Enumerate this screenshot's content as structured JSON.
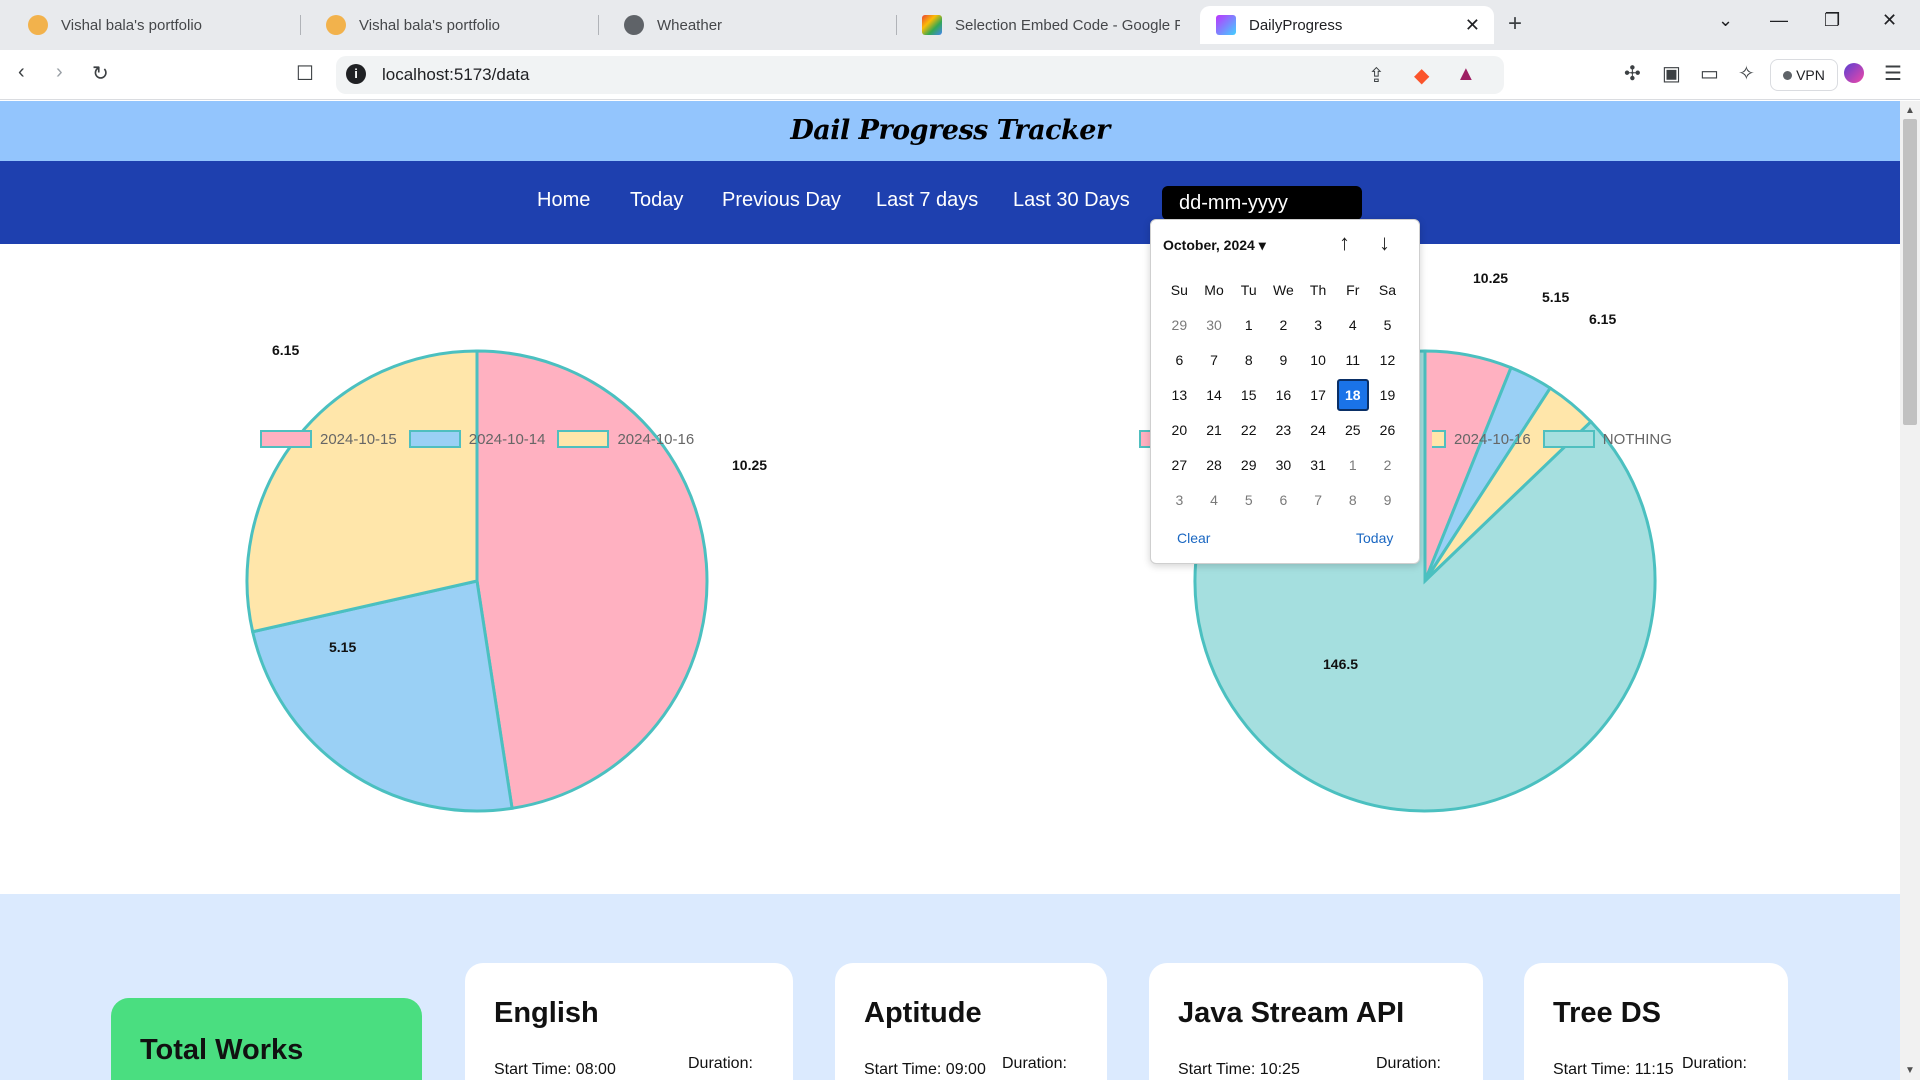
{
  "browser": {
    "tabs": [
      {
        "title": "Vishal bala's portfolio",
        "active": false
      },
      {
        "title": "Vishal bala's portfolio",
        "active": false
      },
      {
        "title": "Wheather",
        "active": false
      },
      {
        "title": "Selection Embed Code - Google For",
        "active": false
      },
      {
        "title": "DailyProgress",
        "active": true
      }
    ],
    "url": "localhost:5173/data",
    "vpn_label": "VPN"
  },
  "site": {
    "title": "Dail Progress Tracker",
    "nav": [
      "Home",
      "Today",
      "Previous Day",
      "Last 7 days",
      "Last 30 Days"
    ],
    "date_placeholder": "dd-mm-yyyy"
  },
  "datepicker": {
    "month_label": "October, 2024",
    "weekdays": [
      "Su",
      "Mo",
      "Tu",
      "We",
      "Th",
      "Fr",
      "Sa"
    ],
    "days": [
      {
        "d": "29",
        "muted": true
      },
      {
        "d": "30",
        "muted": true
      },
      {
        "d": "1"
      },
      {
        "d": "2"
      },
      {
        "d": "3"
      },
      {
        "d": "4"
      },
      {
        "d": "5"
      },
      {
        "d": "6"
      },
      {
        "d": "7"
      },
      {
        "d": "8"
      },
      {
        "d": "9"
      },
      {
        "d": "10"
      },
      {
        "d": "11"
      },
      {
        "d": "12"
      },
      {
        "d": "13"
      },
      {
        "d": "14"
      },
      {
        "d": "15"
      },
      {
        "d": "16"
      },
      {
        "d": "17"
      },
      {
        "d": "18",
        "selected": true
      },
      {
        "d": "19"
      },
      {
        "d": "20"
      },
      {
        "d": "21"
      },
      {
        "d": "22"
      },
      {
        "d": "23"
      },
      {
        "d": "24"
      },
      {
        "d": "25"
      },
      {
        "d": "26"
      },
      {
        "d": "27"
      },
      {
        "d": "28"
      },
      {
        "d": "29"
      },
      {
        "d": "30"
      },
      {
        "d": "31"
      },
      {
        "d": "1",
        "muted": true
      },
      {
        "d": "2",
        "muted": true
      },
      {
        "d": "3",
        "muted": true
      },
      {
        "d": "4",
        "muted": true
      },
      {
        "d": "5",
        "muted": true
      },
      {
        "d": "6",
        "muted": true
      },
      {
        "d": "7",
        "muted": true
      },
      {
        "d": "8",
        "muted": true
      },
      {
        "d": "9",
        "muted": true
      }
    ],
    "clear_label": "Clear",
    "today_label": "Today"
  },
  "chart_data": [
    {
      "type": "pie",
      "labels": [
        "2024-10-15",
        "2024-10-14",
        "2024-10-16"
      ],
      "values": [
        10.25,
        5.15,
        6.15
      ],
      "value_labels": [
        "10.25",
        "5.15",
        "6.15"
      ],
      "colors": [
        "#ffb1c1",
        "#9ad0f5",
        "#ffe6aa"
      ],
      "border_color": "#4bc0c0",
      "legend": "top"
    },
    {
      "type": "pie",
      "labels": [
        "2024-10-15",
        "2024-10-14",
        "2024-10-16",
        "NOTHING"
      ],
      "visible_legend_labels": [
        "2024-10-16",
        "NOTHING"
      ],
      "values": [
        10.25,
        5.15,
        6.15,
        146.5
      ],
      "value_labels": [
        "10.25",
        "5.15",
        "6.15",
        "146.5"
      ],
      "colors": [
        "#ffb1c1",
        "#9ad0f5",
        "#ffe6aa",
        "#a5dfdf"
      ],
      "border_color": "#4bc0c0",
      "legend": "top"
    }
  ],
  "cards_section": {
    "total_label": "Total Works",
    "cards": [
      {
        "title": "English",
        "start": "Start Time: 08:00",
        "duration": "Duration:"
      },
      {
        "title": "Aptitude",
        "start": "Start Time: 09:00",
        "duration": "Duration:"
      },
      {
        "title": "Java Stream API",
        "start": "Start Time: 10:25",
        "duration": "Duration:"
      },
      {
        "title": "Tree DS",
        "start": "Start Time: 11:15",
        "duration": "Duration:"
      }
    ]
  }
}
